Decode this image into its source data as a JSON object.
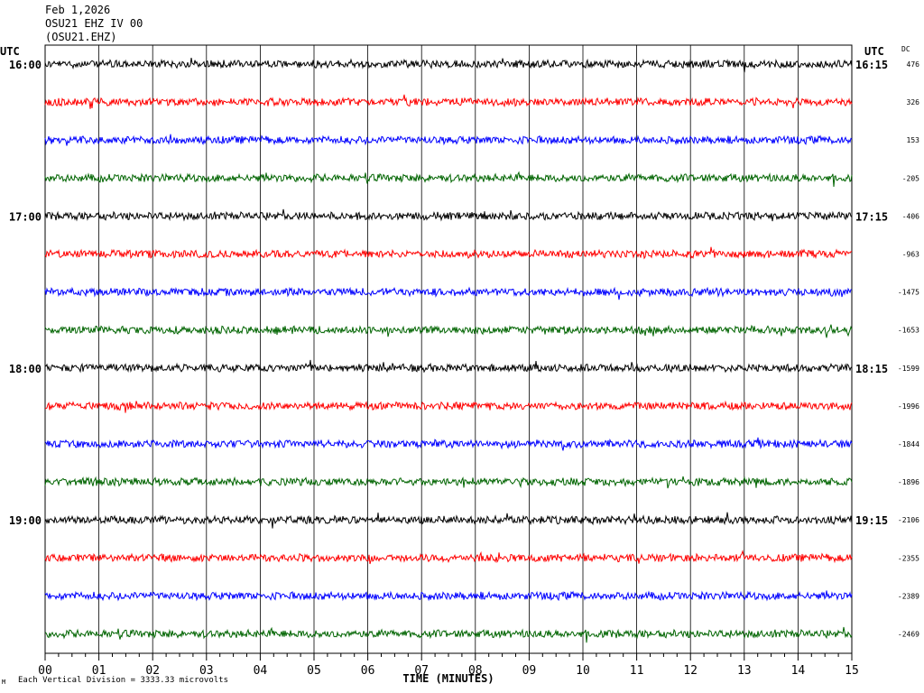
{
  "header": {
    "date": "Feb 1,2026",
    "station": "OSU21 EHZ IV 00",
    "channel": "(OSU21.EHZ)"
  },
  "left_axis_label": "UTC",
  "right_axis_label": "UTC",
  "dc_label": "DC",
  "footer": {
    "mark": "M",
    "note": "Each Vertical Division = 3333.33 microvolts"
  },
  "chart_data": {
    "type": "line",
    "title": "",
    "xlabel": "TIME (MINUTES)",
    "x_ticks": [
      "00",
      "01",
      "02",
      "03",
      "04",
      "05",
      "06",
      "07",
      "08",
      "09",
      "10",
      "11",
      "12",
      "13",
      "14",
      "15"
    ],
    "xlim": [
      0,
      15
    ],
    "grid": true,
    "trace_colors": [
      "#000000",
      "#ff0000",
      "#0000ff",
      "#006400"
    ],
    "left_time_labels": [
      "16:00",
      "17:00",
      "18:00",
      "19:00"
    ],
    "right_time_labels": [
      "16:15",
      "17:15",
      "18:15",
      "19:15"
    ],
    "dc_offsets": [
      "476",
      "326",
      "153",
      "-205",
      "-406",
      "-963",
      "-1475",
      "-1653",
      "-1599",
      "-1996",
      "-1844",
      "-1896",
      "-2106",
      "-2355",
      "-2389",
      "-2469"
    ],
    "traces_count": 16
  }
}
